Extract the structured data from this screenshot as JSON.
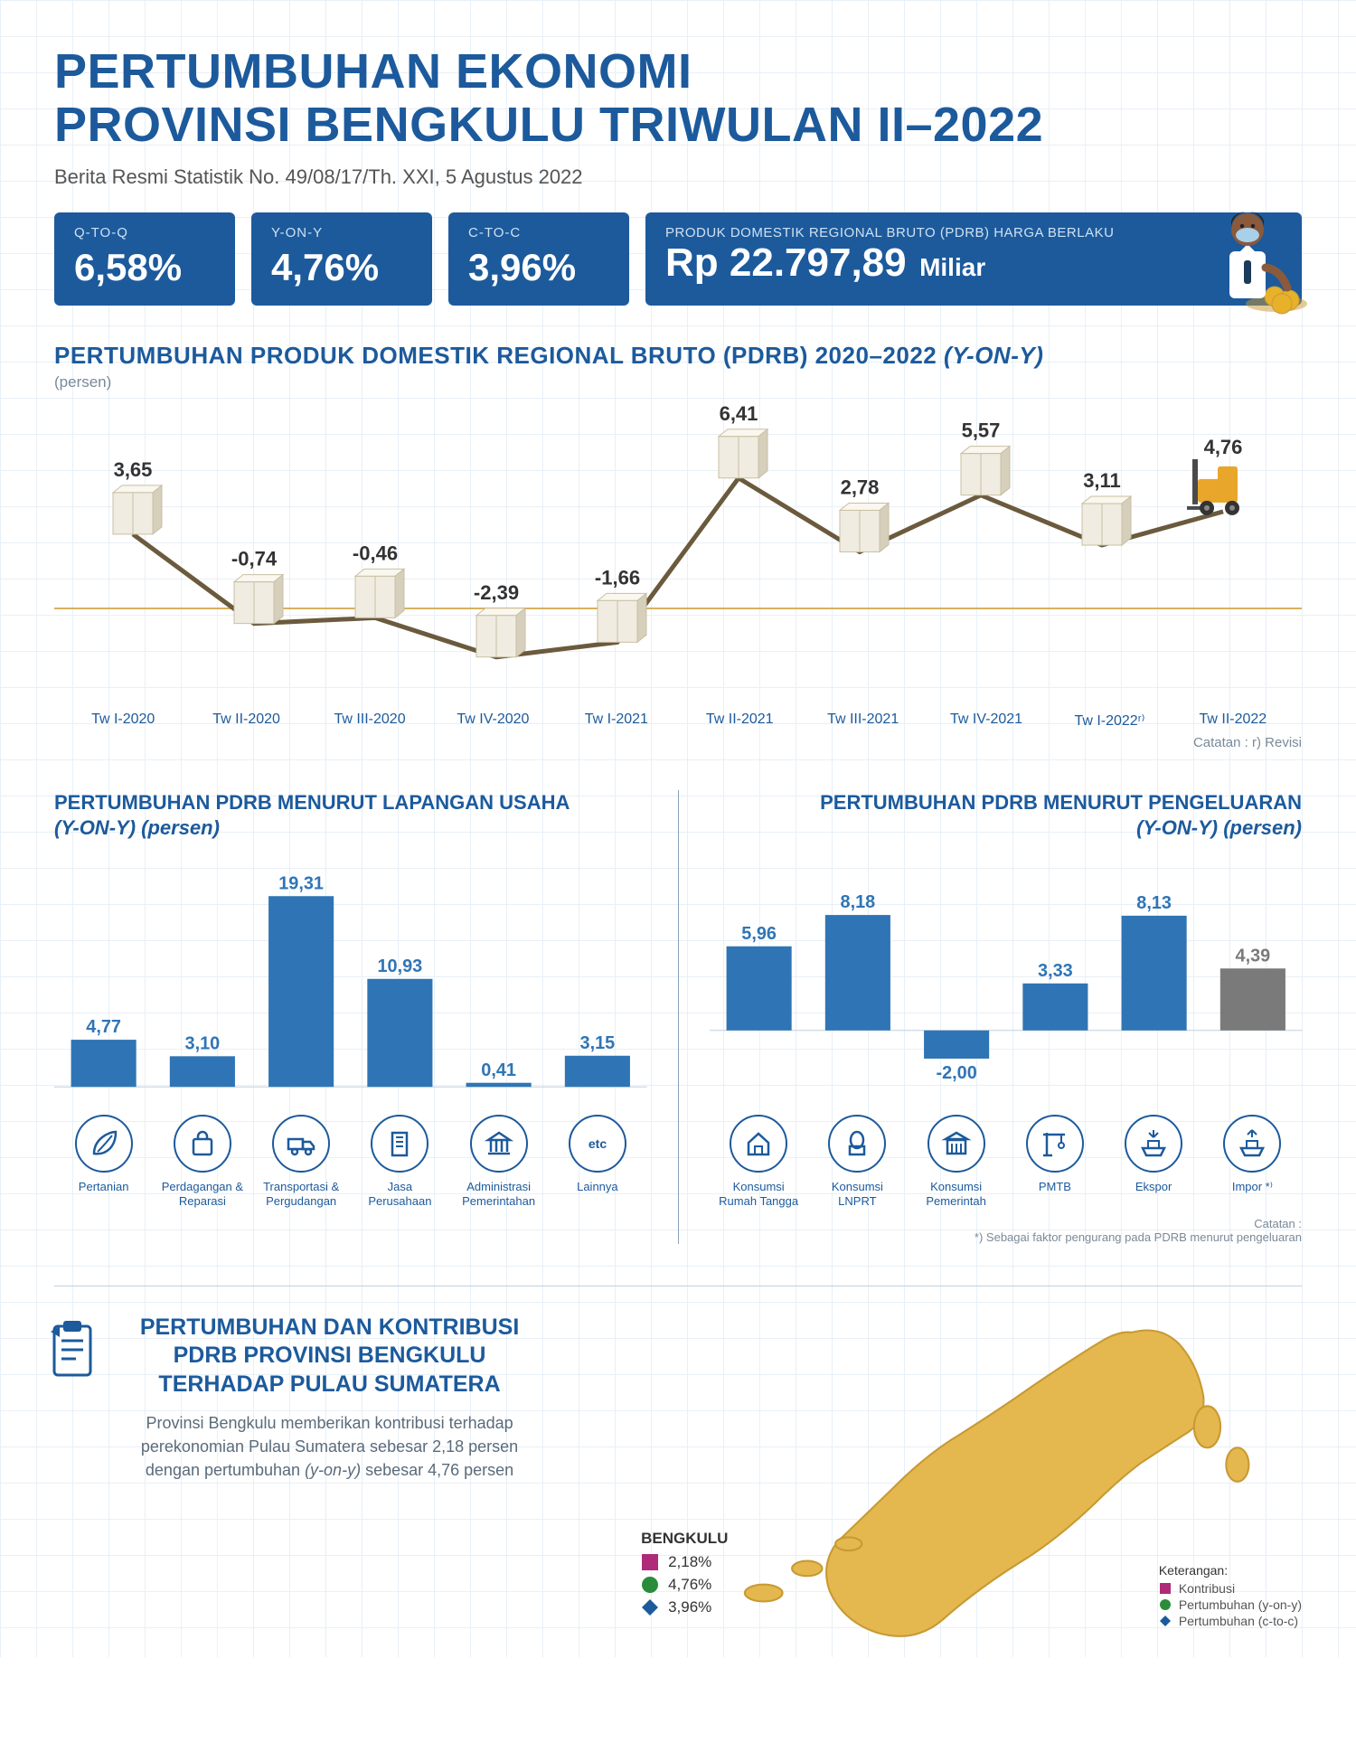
{
  "header": {
    "title_line1": "PERTUMBUHAN EKONOMI",
    "title_line2": "PROVINSI BENGKULU TRIWULAN II–2022",
    "subtitle": "Berita Resmi Statistik No. 49/08/17/Th. XXI, 5 Agustus 2022"
  },
  "colors": {
    "brand": "#1c5a9c",
    "bar_primary": "#2f75b5",
    "bar_secondary": "#7a7a7a",
    "grid": "#e8f0f7",
    "text_dark": "#333333",
    "text_muted": "#7a8a99",
    "map_fill": "#e4b84f",
    "map_stroke": "#c79a32",
    "legend_square": "#b02a7a",
    "legend_circle": "#2a8c3b",
    "legend_diamond": "#1c5a9c",
    "line_stroke": "#6b5a3d",
    "box_face": "#f0ece1",
    "box_side": "#d6cfbb",
    "box_top": "#faf7ee",
    "forklift": "#e8a62a",
    "skin": "#8a5a3c",
    "shirt": "#ffffff",
    "tie": "#1c3a5c",
    "mask": "#a8d0e8",
    "coin": "#e8b12a"
  },
  "kpi": [
    {
      "label": "Q-TO-Q",
      "value": "6,58%"
    },
    {
      "label": "Y-ON-Y",
      "value": "4,76%"
    },
    {
      "label": "C-TO-C",
      "value": "3,96%"
    }
  ],
  "kpi_big": {
    "label": "PRODUK DOMESTIK REGIONAL BRUTO (PDRB) HARGA BERLAKU",
    "value": "Rp 22.797,89",
    "unit": "Miliar"
  },
  "line_chart": {
    "title": "PERTUMBUHAN PRODUK DOMESTIK REGIONAL BRUTO (PDRB) 2020–2022",
    "title_suffix": "(Y-ON-Y)",
    "unit": "(persen)",
    "note": "Catatan : r) Revisi",
    "ymin": -4,
    "ymax": 8,
    "points": [
      {
        "label": "Tw I-2020",
        "value": 3.65,
        "display": "3,65"
      },
      {
        "label": "Tw II-2020",
        "value": -0.74,
        "display": "-0,74"
      },
      {
        "label": "Tw III-2020",
        "value": -0.46,
        "display": "-0,46"
      },
      {
        "label": "Tw IV-2020",
        "value": -2.39,
        "display": "-2,39"
      },
      {
        "label": "Tw I-2021",
        "value": -1.66,
        "display": "-1,66"
      },
      {
        "label": "Tw II-2021",
        "value": 6.41,
        "display": "6,41"
      },
      {
        "label": "Tw III-2021",
        "value": 2.78,
        "display": "2,78"
      },
      {
        "label": "Tw IV-2021",
        "value": 5.57,
        "display": "5,57"
      },
      {
        "label": "Tw I-2022ʳ⁾",
        "value": 3.11,
        "display": "3,11"
      },
      {
        "label": "Tw II-2022",
        "value": 4.76,
        "display": "4,76"
      }
    ]
  },
  "bar_left": {
    "title_line1": "PERTUMBUHAN PDRB MENURUT LAPANGAN USAHA",
    "title_line2": "(Y-ON-Y) (persen)",
    "ymin": 0,
    "ymax": 20,
    "bars": [
      {
        "label": "Pertanian",
        "icon": "leaf",
        "value": 4.77,
        "display": "4,77",
        "color": "#2f75b5"
      },
      {
        "label": "Perdagangan & Reparasi",
        "icon": "bag",
        "value": 3.1,
        "display": "3,10",
        "color": "#2f75b5"
      },
      {
        "label": "Transportasi & Pergudangan",
        "icon": "truck",
        "value": 19.31,
        "display": "19,31",
        "color": "#2f75b5"
      },
      {
        "label": "Jasa Perusahaan",
        "icon": "building",
        "value": 10.93,
        "display": "10,93",
        "color": "#2f75b5"
      },
      {
        "label": "Administrasi Pemerintahan",
        "icon": "gov",
        "value": 0.41,
        "display": "0,41",
        "color": "#2f75b5"
      },
      {
        "label": "Lainnya",
        "icon": "etc",
        "value": 3.15,
        "display": "3,15",
        "color": "#2f75b5"
      }
    ]
  },
  "bar_right": {
    "title_line1": "PERTUMBUHAN PDRB MENURUT PENGELUARAN",
    "title_line2": "(Y-ON-Y) (persen)",
    "note": "Catatan :\n*) Sebagai faktor pengurang pada PDRB menurut pengeluaran",
    "ymin": -4,
    "ymax": 10,
    "bars": [
      {
        "label": "Konsumsi Rumah Tangga",
        "icon": "house",
        "value": 5.96,
        "display": "5,96",
        "color": "#2f75b5"
      },
      {
        "label": "Konsumsi LNPRT",
        "icon": "mosque",
        "value": 8.18,
        "display": "8,18",
        "color": "#2f75b5"
      },
      {
        "label": "Konsumsi Pemerintah",
        "icon": "govbldg",
        "value": -2.0,
        "display": "-2,00",
        "color": "#2f75b5"
      },
      {
        "label": "PMTB",
        "icon": "crane",
        "value": 3.33,
        "display": "3,33",
        "color": "#2f75b5"
      },
      {
        "label": "Ekspor",
        "icon": "ship-out",
        "value": 8.13,
        "display": "8,13",
        "color": "#2f75b5"
      },
      {
        "label": "Impor *⁾",
        "icon": "ship-in",
        "value": 4.39,
        "display": "4,39",
        "color": "#7a7a7a"
      }
    ]
  },
  "bottom": {
    "title_line1": "PERTUMBUHAN DAN KONTRIBUSI",
    "title_line2": "PDRB PROVINSI BENGKULU",
    "title_line3": "TERHADAP PULAU SUMATERA",
    "desc_prefix": "Provinsi Bengkulu memberikan kontribusi terhadap perekonomian Pulau Sumatera sebesar 2,18 persen dengan pertumbuhan ",
    "desc_italic": "(y-on-y)",
    "desc_suffix": " sebesar 4,76 persen",
    "legend_title": "BENGKULU",
    "legend_items": [
      {
        "symbol": "square",
        "color": "#b02a7a",
        "value": "2,18%"
      },
      {
        "symbol": "circle",
        "color": "#2a8c3b",
        "value": "4,76%"
      },
      {
        "symbol": "diamond",
        "color": "#1c5a9c",
        "value": "3,96%"
      }
    ],
    "keterangan_title": "Keterangan:",
    "keterangan_items": [
      {
        "symbol": "square",
        "color": "#b02a7a",
        "text": "Kontribusi"
      },
      {
        "symbol": "circle",
        "color": "#2a8c3b",
        "text": "Pertumbuhan (y-on-y)"
      },
      {
        "symbol": "diamond",
        "color": "#1c5a9c",
        "text": "Pertumbuhan (c-to-c)"
      }
    ]
  }
}
